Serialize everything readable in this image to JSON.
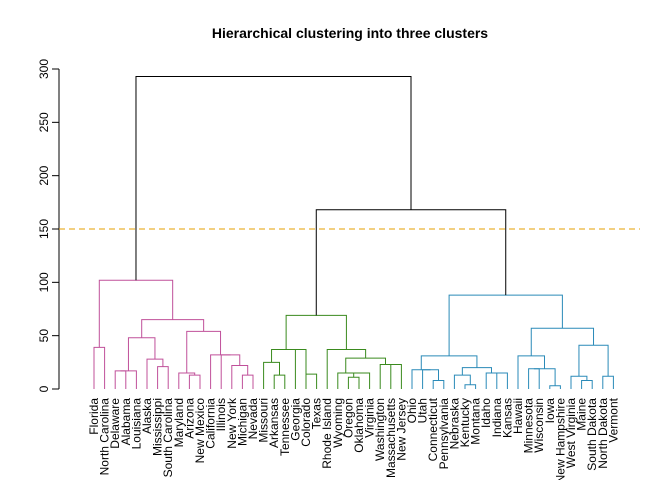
{
  "chart_data": {
    "type": "dendrogram",
    "title": "Hierarchical clustering into three clusters",
    "ylim": [
      0,
      300
    ],
    "yticks": [
      0,
      50,
      100,
      150,
      200,
      250,
      300
    ],
    "cut_height": 150,
    "cut_color": "#E69F00",
    "root_color": "#000000",
    "clusters": [
      {
        "color": "#C0509A"
      },
      {
        "color": "#3A8A1E"
      },
      {
        "color": "#2A8AB8"
      }
    ],
    "leaves": [
      "Florida",
      "North Carolina",
      "Delaware",
      "Alabama",
      "Louisiana",
      "Alaska",
      "Mississippi",
      "South Carolina",
      "Maryland",
      "Arizona",
      "New Mexico",
      "California",
      "Illinois",
      "New York",
      "Michigan",
      "Nevada",
      "Missouri",
      "Arkansas",
      "Tennessee",
      "Georgia",
      "Colorado",
      "Texas",
      "Rhode Island",
      "Wyoming",
      "Oregon",
      "Oklahoma",
      "Virginia",
      "Washington",
      "Massachusetts",
      "New Jersey",
      "Ohio",
      "Utah",
      "Connecticut",
      "Pennsylvania",
      "Nebraska",
      "Kentucky",
      "Montana",
      "Idaho",
      "Indiana",
      "Kansas",
      "Hawaii",
      "Minnesota",
      "Wisconsin",
      "Iowa",
      "New Hampshire",
      "West Virginia",
      "Maine",
      "South Dakota",
      "North Dakota",
      "Vermont"
    ],
    "merges": [
      {
        "id": "a1",
        "left": "leaf:Delaware",
        "right": "leaf:Alabama",
        "height": 17,
        "cluster": 0
      },
      {
        "id": "a2",
        "left": "node:a1",
        "right": "leaf:Louisiana",
        "height": 15,
        "cluster": 0
      },
      {
        "id": "a3",
        "left": "leaf:Mississippi",
        "right": "leaf:South Carolina",
        "height": 21,
        "cluster": 0
      },
      {
        "id": "a4",
        "left": "leaf:Alaska",
        "right": "node:a3",
        "height": 28,
        "cluster": 0
      },
      {
        "id": "a5",
        "left": "node:a2",
        "right": "node:a4",
        "height": 48,
        "cluster": 0
      },
      {
        "id": "a6",
        "left": "leaf:Arizona",
        "right": "leaf:New Mexico",
        "height": 13,
        "cluster": 0
      },
      {
        "id": "a7",
        "left": "leaf:Maryland",
        "right": "node:a6",
        "height": 15,
        "cluster": 0
      },
      {
        "id": "a8",
        "left": "leaf:Michigan",
        "right": "leaf:Nevada",
        "height": 13,
        "cluster": 0
      },
      {
        "id": "a9",
        "left": "leaf:New York",
        "right": "node:a8",
        "height": 22,
        "cluster": 0
      },
      {
        "id": "a10",
        "left": "leaf:Illinois",
        "right": "node:a9",
        "height": 32,
        "cluster": 0
      },
      {
        "id": "a11",
        "left": "leaf:California",
        "right": "node:a10",
        "height": 6,
        "cluster": 0
      },
      {
        "id": "a12",
        "left": "node:a7",
        "right": "node:a11",
        "height": 54,
        "cluster": 0
      },
      {
        "id": "a13",
        "left": "node:a5",
        "right": "node:a12",
        "height": 65,
        "cluster": 0
      },
      {
        "id": "a14",
        "left": "leaf:Florida",
        "right": "leaf:North Carolina",
        "height": 39,
        "cluster": 0
      },
      {
        "id": "a15",
        "left": "node:a14",
        "right": "node:a13",
        "height": 102,
        "cluster": 0
      },
      {
        "id": "b1",
        "left": "leaf:Arkansas",
        "right": "leaf:Tennessee",
        "height": 13,
        "cluster": 1
      },
      {
        "id": "b2",
        "left": "leaf:Missouri",
        "right": "node:b1",
        "height": 25,
        "cluster": 1
      },
      {
        "id": "b3",
        "left": "leaf:Georgia",
        "right": "leaf:Colorado",
        "height": 37,
        "cluster": 1
      },
      {
        "id": "b4",
        "left": "node:b2",
        "right": "node:b3",
        "height": 37,
        "cluster": 1
      },
      {
        "id": "b5",
        "left": "leaf:Colorado",
        "right": "leaf:Texas",
        "height": 14,
        "cluster": 1
      },
      {
        "id": "b6",
        "left": "leaf:Oregon",
        "right": "leaf:Oklahoma",
        "height": 11,
        "cluster": 1
      },
      {
        "id": "b7",
        "left": "leaf:Wyoming",
        "right": "node:b6",
        "height": 15,
        "cluster": 1
      },
      {
        "id": "b8",
        "left": "node:b7",
        "right": "leaf:Virginia",
        "height": 7,
        "cluster": 1
      },
      {
        "id": "b9",
        "left": "leaf:Washington",
        "right": "leaf:Massachusetts",
        "height": 23,
        "cluster": 1
      },
      {
        "id": "b10",
        "left": "node:b9",
        "right": "leaf:New Jersey",
        "height": 12,
        "cluster": 1
      },
      {
        "id": "b11",
        "left": "node:b7",
        "right": "node:b9",
        "height": 29,
        "cluster": 1
      },
      {
        "id": "b12",
        "left": "leaf:Rhode Island",
        "right": "node:b11",
        "height": 37,
        "cluster": 1
      },
      {
        "id": "b13",
        "left": "node:b4",
        "right": "node:b12",
        "height": 69,
        "cluster": 1
      },
      {
        "id": "c1",
        "left": "leaf:Connecticut",
        "right": "leaf:Pennsylvania",
        "height": 8,
        "cluster": 2
      },
      {
        "id": "c2",
        "left": "leaf:Utah",
        "right": "node:c1",
        "height": 18,
        "cluster": 2
      },
      {
        "id": "c3",
        "left": "leaf:Ohio",
        "right": "node:c2",
        "height": 7,
        "cluster": 2
      },
      {
        "id": "c4",
        "left": "leaf:Kentucky",
        "right": "leaf:Montana",
        "height": 4,
        "cluster": 2
      },
      {
        "id": "c5",
        "left": "leaf:Nebraska",
        "right": "node:c4",
        "height": 13,
        "cluster": 2
      },
      {
        "id": "c6",
        "left": "leaf:Idaho",
        "right": "leaf:Indiana",
        "height": 15,
        "cluster": 2
      },
      {
        "id": "c7",
        "left": "node:c6",
        "right": "leaf:Kansas",
        "height": 4,
        "cluster": 2
      },
      {
        "id": "c8",
        "left": "node:c5",
        "right": "node:c6",
        "height": 20,
        "cluster": 2
      },
      {
        "id": "c9",
        "left": "node:c3",
        "right": "node:c8",
        "height": 31,
        "cluster": 2
      },
      {
        "id": "c10",
        "left": "leaf:Minnesota",
        "right": "leaf:Wisconsin",
        "height": 19,
        "cluster": 2
      },
      {
        "id": "c11",
        "left": "leaf:Iowa",
        "right": "leaf:New Hampshire",
        "height": 3,
        "cluster": 2
      },
      {
        "id": "c12",
        "left": "node:c10",
        "right": "node:c11",
        "height": 11,
        "cluster": 2
      },
      {
        "id": "c13",
        "left": "leaf:Hawaii",
        "right": "node:c12",
        "height": 31,
        "cluster": 2
      },
      {
        "id": "c14",
        "left": "leaf:Maine",
        "right": "leaf:South Dakota",
        "height": 8,
        "cluster": 2
      },
      {
        "id": "c15",
        "left": "leaf:West Virginia",
        "right": "node:c14",
        "height": 12,
        "cluster": 2
      },
      {
        "id": "c16",
        "left": "leaf:North Dakota",
        "right": "leaf:Vermont",
        "height": 12,
        "cluster": 2
      },
      {
        "id": "c17",
        "left": "node:c15",
        "right": "node:c16",
        "height": 41,
        "cluster": 2
      },
      {
        "id": "c18",
        "left": "node:c13",
        "right": "node:c17",
        "height": 57,
        "cluster": 2
      },
      {
        "id": "c19",
        "left": "node:c9",
        "right": "node:c18",
        "height": 88,
        "cluster": 2
      },
      {
        "id": "r1",
        "left": "node:b13",
        "right": "node:c19",
        "height": 168,
        "cluster": -1
      },
      {
        "id": "r2",
        "left": "node:a15",
        "right": "node:r1",
        "height": 293,
        "cluster": -1
      }
    ]
  }
}
